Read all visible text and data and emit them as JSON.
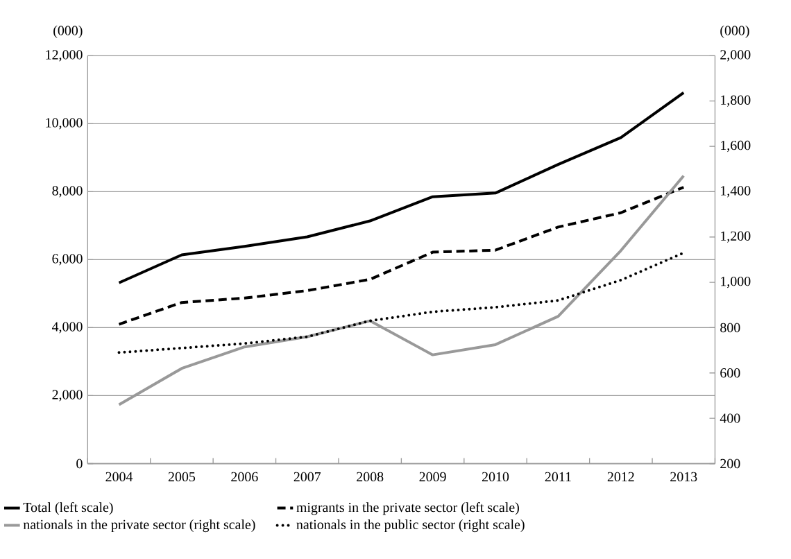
{
  "chart_data": {
    "type": "line",
    "categories": [
      "2004",
      "2005",
      "2006",
      "2007",
      "2008",
      "2009",
      "2010",
      "2011",
      "2012",
      "2013"
    ],
    "series": [
      {
        "name": "Total (left scale)",
        "color": "#000000",
        "line_style": "solid",
        "values": [
          5320,
          6140,
          6390,
          6670,
          7140,
          7850,
          7960,
          8800,
          9590,
          10910
        ]
      },
      {
        "name": "migrants in the private sector (left scale)",
        "color": "#000000",
        "line_style": "dashed",
        "values": [
          4100,
          4740,
          4870,
          5090,
          5420,
          6220,
          6280,
          6960,
          7380,
          8130
        ]
      },
      {
        "name": "nationals in the private sector (right scale)",
        "color": "#999999",
        "line_style": "solid",
        "axis": "y2",
        "values": [
          460,
          620,
          715,
          760,
          830,
          680,
          725,
          850,
          1140,
          1470
        ]
      },
      {
        "name": "nationals in the public sector (right scale)",
        "color": "#000000",
        "line_style": "dotted",
        "axis": "y2",
        "values": [
          690,
          710,
          730,
          760,
          830,
          870,
          890,
          920,
          1010,
          1130
        ]
      }
    ],
    "ylim": [
      0,
      12000
    ],
    "yticks": [
      0,
      {
        "value": 2000,
        "label": "2,000"
      },
      {
        "value": 4000,
        "label": "4,000"
      },
      {
        "value": 6000,
        "label": "6,000"
      },
      {
        "value": 8000,
        "label": "8,000"
      },
      {
        "value": 10000,
        "label": "10,000"
      },
      {
        "value": 12000,
        "label": "12,000"
      }
    ],
    "y2lim": [
      200,
      2000
    ],
    "y2ticks": [
      200,
      400,
      600,
      800,
      {
        "value": 1000,
        "label": "1,000"
      },
      {
        "value": 1200,
        "label": "1,200"
      },
      {
        "value": 1400,
        "label": "1,400"
      },
      {
        "value": 1600,
        "label": "1,600"
      },
      {
        "value": 1800,
        "label": "1,800"
      },
      {
        "value": 2000,
        "label": "2,000"
      }
    ],
    "ylabel": "(000)",
    "y2label": "(000)",
    "grid": "y",
    "legend": "bottom",
    "marker": "none"
  }
}
